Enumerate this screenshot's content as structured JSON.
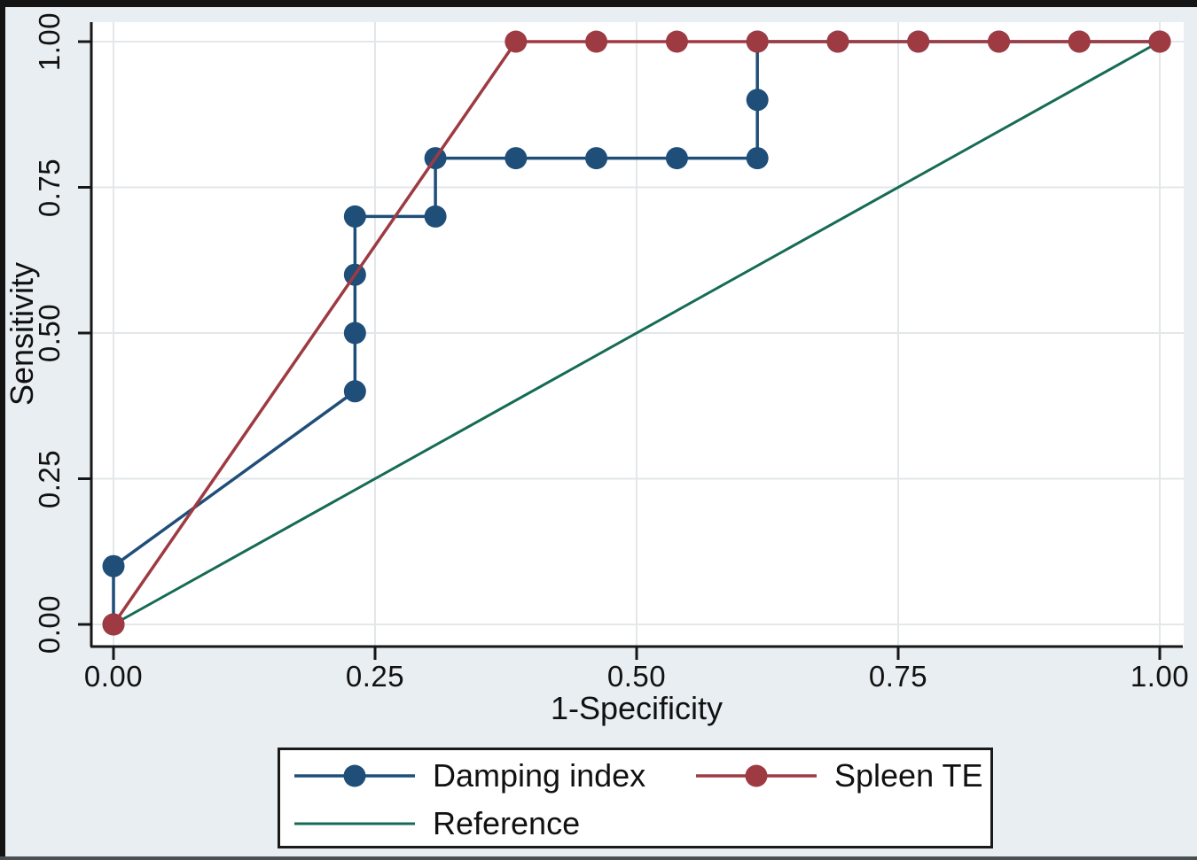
{
  "figure": {
    "background_color": "#e8eef1",
    "plot_background": "#ffffff",
    "grid_color": "#e3e7e9",
    "axis_color": "#161616",
    "text_color": "#111111",
    "frame_color": "#141414"
  },
  "chart_data": {
    "type": "line",
    "subtype": "roc-curve-comparison",
    "title": "",
    "xlabel": "1-Specificity",
    "ylabel": "Sensitivity",
    "xlim": [
      0,
      1
    ],
    "ylim": [
      0,
      1
    ],
    "grid": true,
    "legend_position": "bottom",
    "x_ticks": [
      {
        "v": 0,
        "label": "0.00"
      },
      {
        "v": 0.25,
        "label": "0.25"
      },
      {
        "v": 0.5,
        "label": "0.50"
      },
      {
        "v": 0.75,
        "label": "0.75"
      },
      {
        "v": 1,
        "label": "1.00"
      }
    ],
    "y_ticks": [
      {
        "v": 0,
        "label": "0.00"
      },
      {
        "v": 0.25,
        "label": "0.25"
      },
      {
        "v": 0.5,
        "label": "0.50"
      },
      {
        "v": 0.75,
        "label": "0.75"
      },
      {
        "v": 1,
        "label": "1.00"
      }
    ],
    "series": [
      {
        "name": "Damping index",
        "color": "#1f4e79",
        "marker": true,
        "line_width": 3.5,
        "z": 1,
        "points": [
          [
            0,
            0
          ],
          [
            0,
            0.1
          ],
          [
            0.2308,
            0.4
          ],
          [
            0.2308,
            0.5
          ],
          [
            0.2308,
            0.6
          ],
          [
            0.2308,
            0.7
          ],
          [
            0.3077,
            0.7
          ],
          [
            0.3077,
            0.8
          ],
          [
            0.3846,
            0.8
          ],
          [
            0.4615,
            0.8
          ],
          [
            0.5385,
            0.8
          ],
          [
            0.6154,
            0.8
          ],
          [
            0.6154,
            0.9
          ],
          [
            0.6154,
            1
          ],
          [
            0.6923,
            1
          ],
          [
            0.7692,
            1
          ],
          [
            0.8462,
            1
          ],
          [
            0.9231,
            1
          ],
          [
            1,
            1
          ]
        ]
      },
      {
        "name": "Spleen TE",
        "color": "#9e3a42",
        "marker": true,
        "line_width": 3.5,
        "z": 2,
        "points": [
          [
            0,
            0
          ],
          [
            0.3846,
            1
          ],
          [
            0.4615,
            1
          ],
          [
            0.5385,
            1
          ],
          [
            0.6154,
            1
          ],
          [
            0.6923,
            1
          ],
          [
            0.7692,
            1
          ],
          [
            0.8462,
            1
          ],
          [
            0.9231,
            1
          ],
          [
            1,
            1
          ]
        ]
      },
      {
        "name": "Reference",
        "color": "#156b54",
        "marker": false,
        "line_width": 3,
        "z": 0,
        "points": [
          [
            0,
            0
          ],
          [
            1,
            1
          ]
        ]
      }
    ]
  },
  "legend": {
    "row1": [
      "Damping index",
      "Spleen TE"
    ],
    "row2": [
      "Reference"
    ]
  }
}
